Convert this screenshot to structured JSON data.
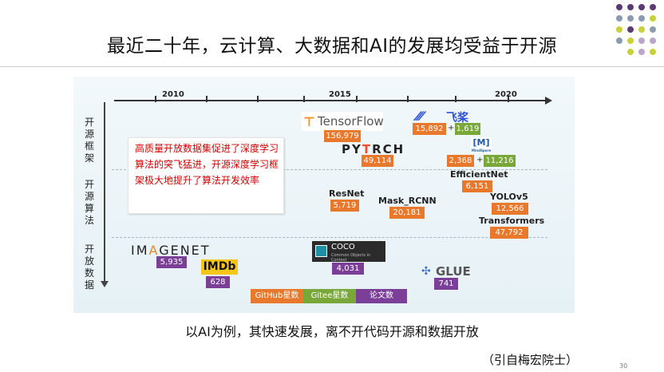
{
  "title": "最近二十年，云计算、大数据和AI的发展均受益于开源",
  "years": [
    "2010",
    "2015",
    "2020"
  ],
  "categories": {
    "frameworks": [
      "开",
      "源",
      "框",
      "架"
    ],
    "algorithms": [
      "开",
      "源",
      "算",
      "法"
    ],
    "data": [
      "开",
      "放",
      "数",
      "据"
    ]
  },
  "callout": "高质量开放数据集促进了深度学习算法的突飞猛进，开源深度学习框架极大地提升了算法开发效率",
  "frameworks": {
    "tensorflow": {
      "name": "TensorFlow",
      "github": "156,979"
    },
    "pytorch": {
      "name_a": "PY",
      "flame": "T",
      "name_b": "RCH",
      "github": "49,114"
    },
    "paddle": {
      "name": "飞桨",
      "github": "15,892",
      "gitee": "1,619"
    },
    "mindspore": {
      "mark": "[M]",
      "small": "MindSpore",
      "github": "2,368",
      "gitee": "11,216"
    }
  },
  "algorithms": [
    {
      "name": "ResNet",
      "github": "5,719"
    },
    {
      "name": "Mask_RCNN",
      "github": "20,181"
    },
    {
      "name": "EfficientNet",
      "github": "6,151"
    },
    {
      "name": "YOLOv5",
      "github": "12,566"
    },
    {
      "name": "Transformers",
      "github": "47,792"
    }
  ],
  "datasets": {
    "imagenet": {
      "part_a": "IM",
      "part_o": "A",
      "part_b": "GENET",
      "citations": "5,935"
    },
    "imdb": {
      "name": "IMDb",
      "citations": "628"
    },
    "coco": {
      "name": "COCO",
      "subtitle": "Common Objects in Context",
      "citations": "4,031"
    },
    "glue": {
      "name": "GLUE",
      "citations": "741"
    }
  },
  "legend": {
    "github": "GitHub星数",
    "gitee": "Gitee星数",
    "papers": "论文数"
  },
  "caption": "以AI为例，其快速发展，离不开代码开源和数据开放",
  "source": "（引自梅宏院士）",
  "page_number": "30",
  "colors": {
    "github": "#e8792c",
    "gitee": "#7aa73a",
    "papers": "#7b3f98",
    "callout_text": "#d40000"
  }
}
